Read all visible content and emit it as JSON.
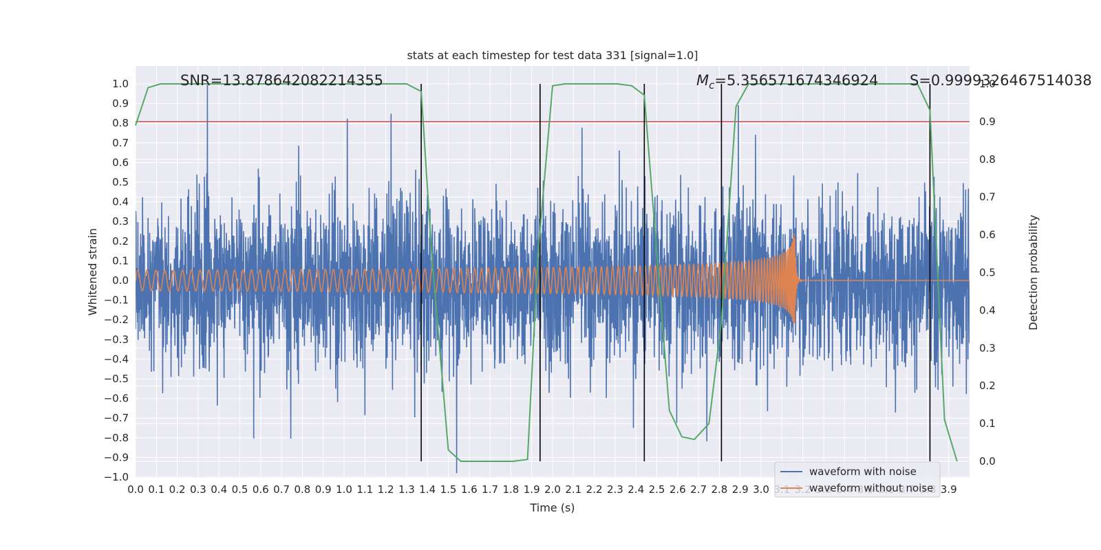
{
  "chart_data": {
    "type": "line",
    "title": "stats at each timestep for test data 331 [signal=1.0]",
    "xlabel": "Time (s)",
    "ylabel": "Whitened strain",
    "y2label": "Detection probability",
    "xlim": [
      0.0,
      4.0
    ],
    "ylim": [
      -1.0,
      1.0
    ],
    "y2lim": [
      -0.045,
      1.0
    ],
    "x_ticks": [
      "0.0",
      "0.1",
      "0.2",
      "0.3",
      "0.4",
      "0.5",
      "0.6",
      "0.7",
      "0.8",
      "0.9",
      "1.0",
      "1.1",
      "1.2",
      "1.3",
      "1.4",
      "1.5",
      "1.6",
      "1.7",
      "1.8",
      "1.9",
      "2.0",
      "2.1",
      "2.2",
      "2.3",
      "2.4",
      "2.5",
      "2.6",
      "2.7",
      "2.8",
      "2.9",
      "3.0",
      "3.1",
      "3.2",
      "3.3",
      "3.4",
      "3.5",
      "3.6",
      "3.7",
      "3.8",
      "3.9"
    ],
    "y_ticks": [
      "1.0",
      "0.9",
      "0.8",
      "0.7",
      "0.6",
      "0.5",
      "0.4",
      "0.3",
      "0.2",
      "0.1",
      "0.0",
      "−0.1",
      "−0.2",
      "−0.3",
      "−0.4",
      "−0.5",
      "−0.6",
      "−0.7",
      "−0.8",
      "−0.9",
      "−1.0"
    ],
    "y2_ticks": [
      "1.0",
      "0.9",
      "0.8",
      "0.7",
      "0.6",
      "0.5",
      "0.4",
      "0.3",
      "0.2",
      "0.1",
      "0.0"
    ],
    "annotations": {
      "snr": "SNR=13.878642082214355",
      "mc": "M",
      "mc_sub": "c",
      "mc_value": "=5.356571674346924",
      "s": "S=0.9999326467514038"
    },
    "threshold": 0.9,
    "event_lines_x": [
      1.37,
      1.94,
      2.44,
      2.81,
      3.81
    ],
    "merger_time": 3.16,
    "series": [
      {
        "name": "waveform with noise",
        "color": "#4c72b0"
      },
      {
        "name": "waveform without noise",
        "color": "#dd8452"
      },
      {
        "name": "detection probability",
        "color": "#55a868",
        "x": [
          0.0,
          0.06,
          0.12,
          0.2,
          1.3,
          1.37,
          1.42,
          1.5,
          1.56,
          1.62,
          1.69,
          1.75,
          1.81,
          1.88,
          1.93,
          2.0,
          2.06,
          2.12,
          2.18,
          2.25,
          2.31,
          2.38,
          2.44,
          2.5,
          2.56,
          2.62,
          2.68,
          2.75,
          2.81,
          2.88,
          2.94,
          3.0,
          3.06,
          3.12,
          3.75,
          3.81,
          3.88,
          3.94
        ],
        "values": [
          0.89,
          0.99,
          1.0,
          1.0,
          1.0,
          0.98,
          0.55,
          0.03,
          0.0,
          0.0,
          0.0,
          0.0,
          0.0,
          0.005,
          0.55,
          0.995,
          1.0,
          1.0,
          1.0,
          1.0,
          1.0,
          0.995,
          0.97,
          0.55,
          0.135,
          0.065,
          0.058,
          0.1,
          0.37,
          0.94,
          1.0,
          1.0,
          1.0,
          1.0,
          1.0,
          0.93,
          0.11,
          0.0
        ]
      }
    ],
    "legend": [
      "waveform with noise",
      "waveform without noise"
    ]
  }
}
